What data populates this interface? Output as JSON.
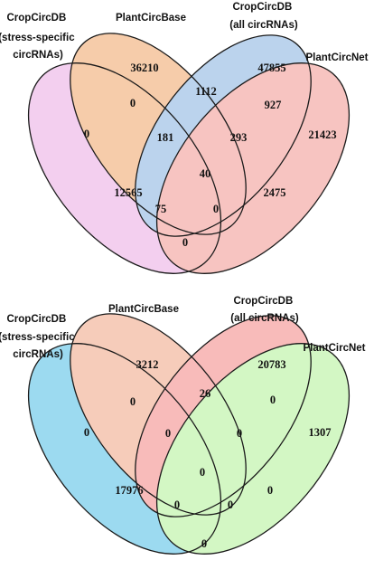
{
  "figure": {
    "set_names": {
      "a": [
        "CropCircDB",
        "(stress-specific",
        "circRNAs)"
      ],
      "b": [
        "PlantCircBase"
      ],
      "c": [
        "CropCircDB",
        "(all circRNAs)"
      ],
      "d": [
        "PlantCircNet"
      ]
    },
    "panels": [
      {
        "colors": {
          "a": "#e8a0e0",
          "b": "#ee9a58",
          "c": "#7aa8dc",
          "d": "#f08a84"
        },
        "regions": {
          "a": "0",
          "b": "36210",
          "c": "47855",
          "d": "21423",
          "ab": "0",
          "bc": "1112",
          "cd": "927",
          "abc": "181",
          "bcd": "293",
          "ac": "12565",
          "bd": "2475",
          "abcd": "40",
          "acd": "75",
          "abd": "0",
          "ad": "0"
        }
      },
      {
        "colors": {
          "a": "#3bb6e3",
          "b": "#ee9a78",
          "c": "#f37a78",
          "d": "#a8f08a"
        },
        "regions": {
          "a": "0",
          "b": "3212",
          "c": "20783",
          "d": "1307",
          "ab": "0",
          "bc": "26",
          "cd": "0",
          "abc": "0",
          "bcd": "0",
          "ac": "17976",
          "bd": "0",
          "abcd": "0",
          "acd": "0",
          "abd": "0",
          "ad": "0"
        }
      }
    ]
  }
}
